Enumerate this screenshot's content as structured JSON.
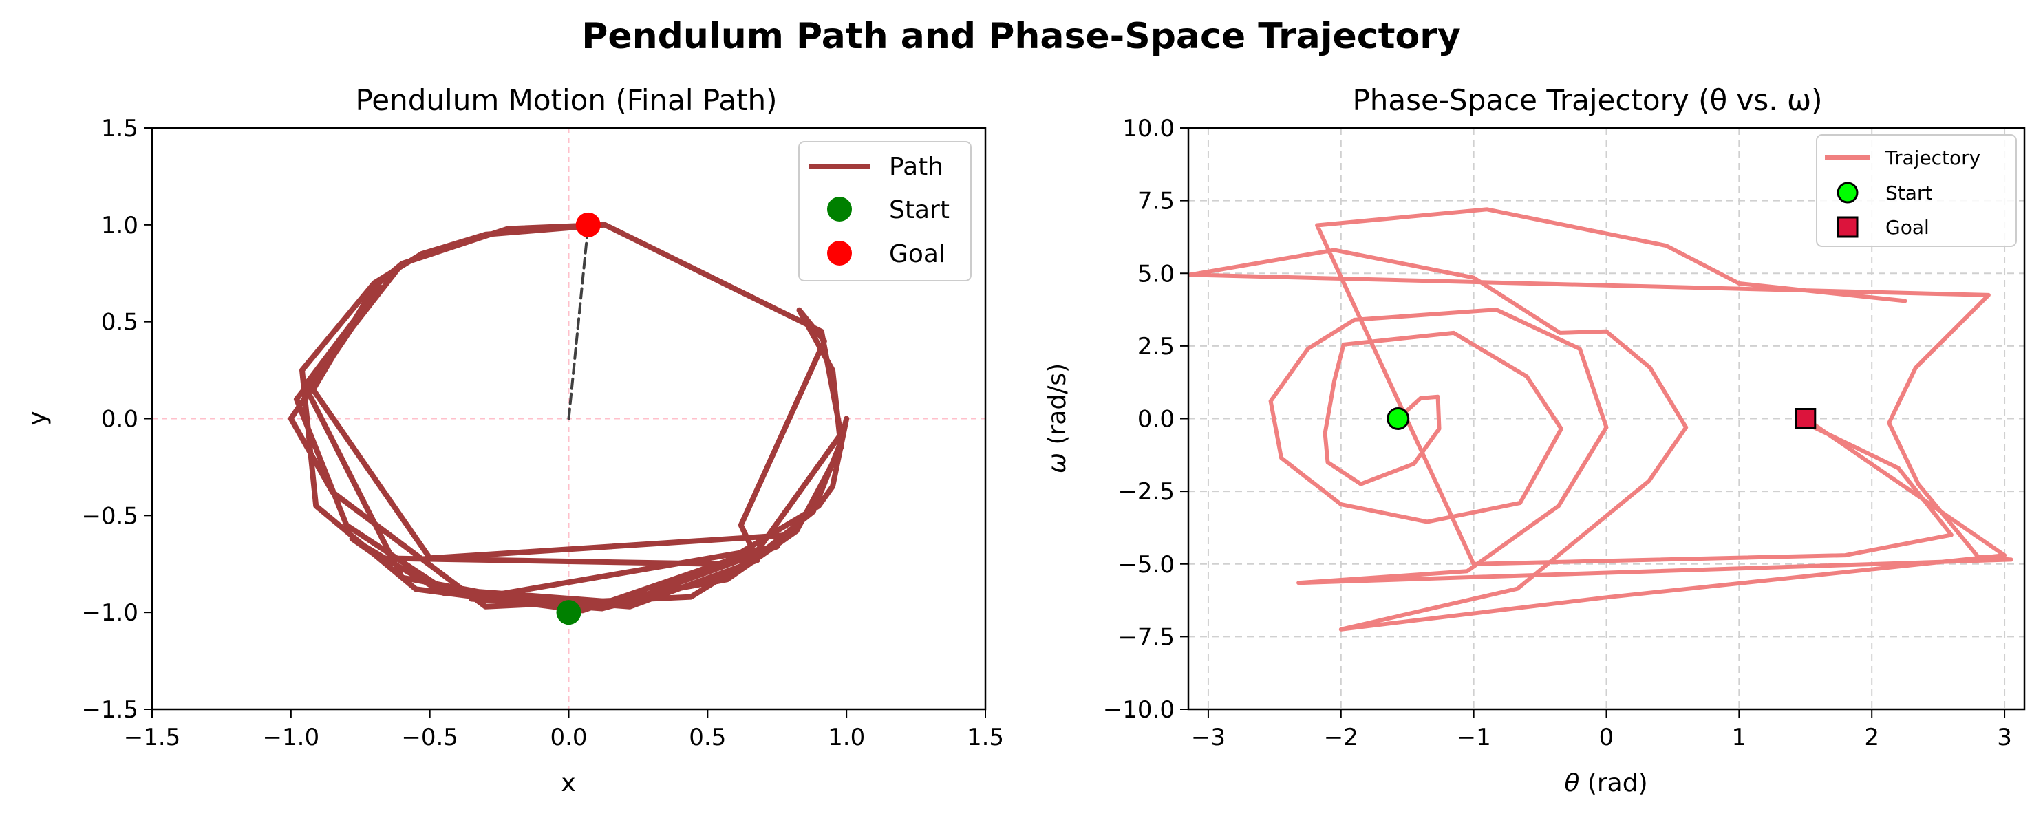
{
  "figure": {
    "title": "Pendulum Path and Phase-Space Trajectory"
  },
  "chart_data": [
    {
      "type": "line",
      "title": "Pendulum Motion (Final Path)",
      "xlabel": "x",
      "ylabel": "y",
      "xlim": [
        -1.5,
        1.5
      ],
      "ylim": [
        -1.5,
        1.5
      ],
      "xticks": [
        "−1.5",
        "−1.0",
        "−0.5",
        "0.0",
        "0.5",
        "1.0",
        "1.5"
      ],
      "yticks": [
        "−1.5",
        "−1.0",
        "−0.5",
        "0.0",
        "0.5",
        "1.0",
        "1.5"
      ],
      "xtick_values": [
        -1.5,
        -1.0,
        -0.5,
        0.0,
        0.5,
        1.0,
        1.5
      ],
      "ytick_values": [
        -1.5,
        -1.0,
        -0.5,
        0.0,
        0.5,
        1.0,
        1.5
      ],
      "grid": false,
      "reference_lines": {
        "x": 0,
        "y": 0,
        "color": "#ffc0cb"
      },
      "series": [
        {
          "name": "Path",
          "color": "#a23b3b",
          "points": [
            [
              0.13,
              1.0
            ],
            [
              0.91,
              0.45
            ],
            [
              0.98,
              -0.08
            ],
            [
              0.68,
              -0.68
            ],
            [
              0.05,
              -0.99
            ],
            [
              -0.55,
              -0.88
            ],
            [
              -0.91,
              -0.45
            ],
            [
              -0.96,
              0.25
            ],
            [
              -0.7,
              0.7
            ],
            [
              -0.53,
              0.85
            ],
            [
              -0.3,
              0.95
            ],
            [
              0.13,
              1.0
            ],
            [
              -0.22,
              0.98
            ],
            [
              -0.6,
              0.8
            ],
            [
              -0.7,
              0.68
            ],
            [
              -0.92,
              0.15
            ],
            [
              -0.5,
              -0.72
            ],
            [
              0.8,
              -0.6
            ],
            [
              0.44,
              -0.92
            ],
            [
              -0.3,
              -0.97
            ],
            [
              -0.85,
              -0.38
            ],
            [
              -1.0,
              0.0
            ],
            [
              -0.85,
              0.32
            ],
            [
              -0.68,
              0.68
            ],
            [
              -0.75,
              0.55
            ],
            [
              -0.95,
              0.17
            ],
            [
              -0.6,
              -0.82
            ],
            [
              0.0,
              -0.98
            ],
            [
              0.57,
              -0.83
            ],
            [
              0.82,
              -0.58
            ],
            [
              0.98,
              -0.15
            ],
            [
              0.95,
              0.25
            ],
            [
              0.83,
              0.56
            ],
            [
              0.92,
              0.4
            ],
            [
              0.62,
              -0.55
            ],
            [
              0.68,
              -0.73
            ],
            [
              0.22,
              -0.97
            ],
            [
              -0.45,
              -0.9
            ],
            [
              -0.78,
              -0.62
            ],
            [
              -0.68,
              -0.72
            ],
            [
              0.55,
              -0.75
            ],
            [
              0.9,
              -0.45
            ],
            [
              0.95,
              -0.35
            ],
            [
              1.0,
              0.0
            ],
            [
              0.98,
              -0.12
            ],
            [
              0.88,
              -0.48
            ],
            [
              0.6,
              -0.8
            ],
            [
              0.12,
              -0.98
            ],
            [
              -0.35,
              -0.93
            ],
            [
              0.75,
              -0.66
            ],
            [
              0.2,
              -0.95
            ],
            [
              -0.45,
              -0.88
            ],
            [
              -0.8,
              -0.55
            ],
            [
              -0.98,
              0.1
            ],
            [
              -0.6,
              0.8
            ]
          ]
        },
        {
          "name": "Rod",
          "color": "#404040",
          "points": [
            [
              0.0,
              0.0
            ],
            [
              0.07,
              1.0
            ]
          ]
        }
      ],
      "markers": [
        {
          "name": "Start",
          "x": 0.0,
          "y": -1.0,
          "color": "#008000"
        },
        {
          "name": "Goal",
          "x": 0.07,
          "y": 1.0,
          "color": "#ff0000"
        }
      ],
      "legend": {
        "position": "top-right",
        "entries": [
          "Path",
          "Start",
          "Goal"
        ]
      }
    },
    {
      "type": "line",
      "title": "Phase-Space Trajectory (θ vs. ω)",
      "xlabel_symbol": "θ",
      "xlabel_unit": " (rad)",
      "ylabel_symbol": "ω",
      "ylabel_unit": " (rad/s)",
      "xlim": [
        -3.15,
        3.15
      ],
      "ylim": [
        -10.0,
        10.0
      ],
      "xticks": [
        "−3",
        "−2",
        "−1",
        "0",
        "1",
        "2",
        "3"
      ],
      "yticks": [
        "−10.0",
        "−7.5",
        "−5.0",
        "−2.5",
        "0.0",
        "2.5",
        "5.0",
        "7.5",
        "10.0"
      ],
      "xtick_values": [
        -3,
        -2,
        -1,
        0,
        1,
        2,
        3
      ],
      "ytick_values": [
        -10.0,
        -7.5,
        -5.0,
        -2.5,
        0.0,
        2.5,
        5.0,
        7.5,
        10.0
      ],
      "grid": true,
      "series": [
        {
          "name": "Trajectory",
          "color": "#f08080",
          "points": [
            [
              -1.57,
              0.0
            ],
            [
              -1.4,
              0.7
            ],
            [
              -1.27,
              0.75
            ],
            [
              -1.26,
              -0.35
            ],
            [
              -1.45,
              -1.55
            ],
            [
              -1.85,
              -2.25
            ],
            [
              -2.1,
              -1.5
            ],
            [
              -2.12,
              -0.5
            ],
            [
              -2.05,
              1.3
            ],
            [
              -1.98,
              2.55
            ],
            [
              -1.15,
              2.95
            ],
            [
              -0.6,
              1.45
            ],
            [
              -0.34,
              -0.35
            ],
            [
              -0.65,
              -2.9
            ],
            [
              -1.35,
              -3.55
            ],
            [
              -2.0,
              -2.95
            ],
            [
              -2.45,
              -1.35
            ],
            [
              -2.53,
              0.6
            ],
            [
              -2.25,
              2.4
            ],
            [
              -1.9,
              3.4
            ],
            [
              -0.83,
              3.75
            ],
            [
              -0.2,
              2.4
            ],
            [
              0.0,
              -0.3
            ],
            [
              -0.36,
              -3.0
            ],
            [
              -1.05,
              -5.25
            ],
            [
              -2.32,
              -5.65
            ],
            [
              3.05,
              -4.85
            ],
            [
              2.8,
              -4.75
            ],
            [
              2.35,
              -2.25
            ],
            [
              2.13,
              -0.15
            ],
            [
              2.33,
              1.75
            ],
            [
              2.88,
              4.25
            ],
            [
              -3.14,
              4.95
            ],
            [
              -2.05,
              5.8
            ],
            [
              -1.0,
              4.85
            ],
            [
              -0.35,
              2.95
            ],
            [
              0.0,
              3.0
            ],
            [
              0.33,
              1.75
            ],
            [
              0.6,
              -0.3
            ],
            [
              0.32,
              -2.15
            ],
            [
              -0.67,
              -5.85
            ],
            [
              -2.0,
              -7.25
            ],
            [
              0.0,
              -6.15
            ],
            [
              3.0,
              -4.7
            ],
            [
              1.5,
              0.0
            ],
            [
              1.52,
              -0.2
            ],
            [
              2.2,
              -1.7
            ],
            [
              2.6,
              -4.0
            ],
            [
              1.8,
              -4.7
            ],
            [
              -1.0,
              -5.0
            ],
            [
              -2.18,
              6.65
            ],
            [
              -0.9,
              7.2
            ],
            [
              0.45,
              5.95
            ],
            [
              1.0,
              4.65
            ],
            [
              2.25,
              4.05
            ]
          ]
        }
      ],
      "markers": [
        {
          "name": "Start",
          "x": -1.57,
          "y": 0.0,
          "color": "#00ff00",
          "shape": "circle"
        },
        {
          "name": "Goal",
          "x": 1.5,
          "y": 0.0,
          "color": "#dc143c",
          "shape": "square"
        }
      ],
      "legend": {
        "position": "top-right",
        "entries": [
          "Trajectory",
          "Start",
          "Goal"
        ]
      }
    }
  ]
}
